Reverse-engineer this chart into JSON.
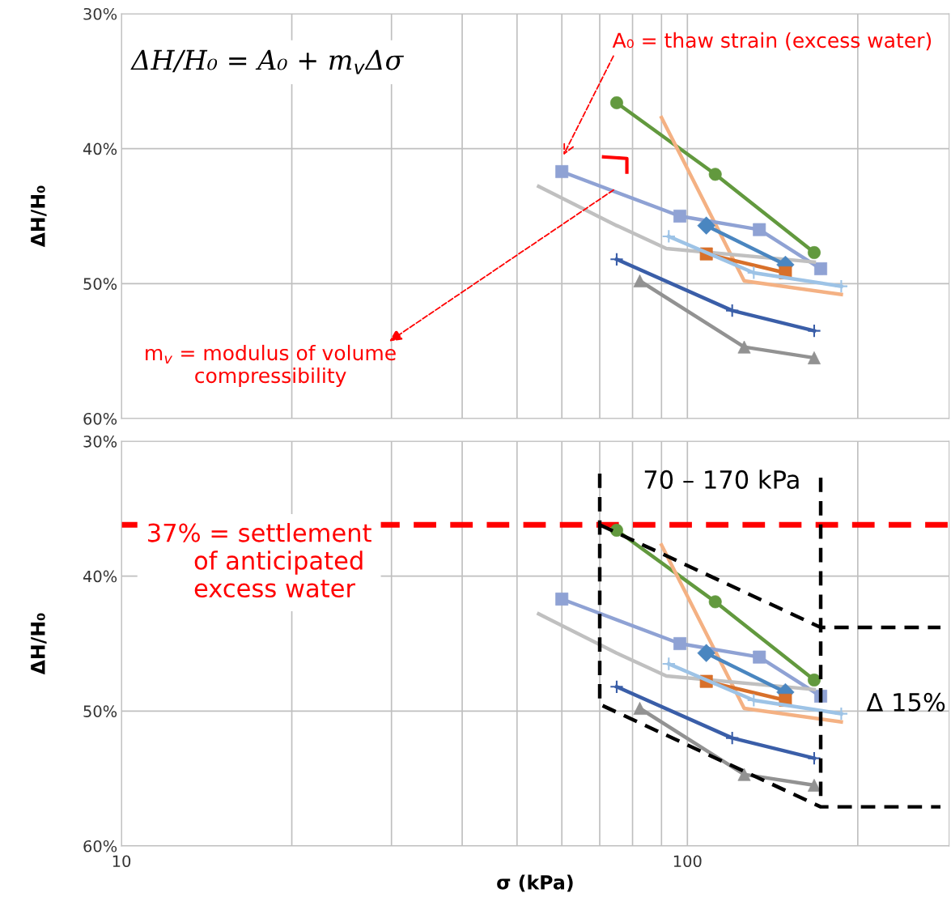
{
  "chart_data": [
    {
      "type": "line",
      "ylabel": "ΔH/H₀",
      "log": "x",
      "grid": true,
      "tick_labels": "y",
      "xlim": [
        10,
        290
      ],
      "xticks": [
        10,
        {
          "value": 20,
          "label": null
        },
        {
          "value": 30,
          "label": null
        },
        {
          "value": 40,
          "label": null
        },
        {
          "value": 50,
          "label": null
        },
        {
          "value": 60,
          "label": null
        },
        {
          "value": 70,
          "label": null
        },
        {
          "value": 80,
          "label": null
        },
        {
          "value": 90,
          "label": null
        },
        100,
        {
          "value": 200,
          "label": null
        }
      ],
      "ylim": [
        60,
        30
      ],
      "yticks": [
        {
          "value": 30,
          "label": "30%"
        },
        {
          "value": 40,
          "label": "40%"
        },
        {
          "value": 50,
          "label": "50%"
        },
        {
          "value": 60,
          "label": "60%"
        }
      ],
      "annotations": [
        "ΔH/H₀ = A₀ + m$_{v}$Δσ",
        "A₀ = thaw strain (excess water)",
        {
          "text": "m$_{v}$ = modulus of volume\ncompressibility",
          "x": 75,
          "y": 42.9
        }
      ],
      "series": [
        {
          "color": "#62993e",
          "marker": "circle",
          "x": [
            75,
            112,
            167.5
          ],
          "values": [
            36.6,
            41.9,
            47.7
          ]
        },
        {
          "color": "#f4b183",
          "marker": "none",
          "x": [
            90,
            126,
            187
          ],
          "values": [
            37.7,
            49.8,
            50.8
          ]
        },
        {
          "color": "#8fa2d4",
          "marker": "square",
          "x": [
            60,
            97,
            134,
            172
          ],
          "values": [
            41.7,
            45.0,
            46.0,
            48.9
          ]
        },
        {
          "color": "#c0c0c0",
          "marker": "none",
          "x": [
            54.6,
            75,
            91.8,
            167.5
          ],
          "values": [
            42.8,
            45.7,
            47.4,
            48.4
          ]
        },
        {
          "color": "#4a86c0",
          "marker": "diamond",
          "x": [
            108,
            149
          ],
          "values": [
            45.7,
            48.6
          ]
        },
        {
          "color": "#d8702a",
          "marker": "square",
          "x": [
            108,
            149
          ],
          "values": [
            47.8,
            49.2
          ]
        },
        {
          "color": "#9dc3e6",
          "marker": "cross",
          "x": [
            92.7,
            131,
            187
          ],
          "values": [
            46.5,
            49.2,
            50.2
          ]
        },
        {
          "color": "#3a5ea8",
          "marker": "cross",
          "x": [
            75,
            120,
            167.5
          ],
          "values": [
            48.2,
            52.0,
            53.5
          ]
        },
        {
          "color": "#929292",
          "marker": "triangle",
          "x": [
            82.4,
            126,
            167.5
          ],
          "values": [
            49.8,
            54.7,
            55.5
          ]
        }
      ]
    },
    {
      "type": "line",
      "ylabel": "ΔH/H₀",
      "xlabel": "σ (kPa)",
      "log": "x",
      "grid": true,
      "xlim": [
        10,
        290
      ],
      "xticks": [
        10,
        {
          "value": 20,
          "label": null
        },
        {
          "value": 30,
          "label": null
        },
        {
          "value": 40,
          "label": null
        },
        {
          "value": 50,
          "label": null
        },
        {
          "value": 60,
          "label": null
        },
        {
          "value": 70,
          "label": null
        },
        {
          "value": 80,
          "label": null
        },
        {
          "value": 90,
          "label": null
        },
        100,
        {
          "value": 200,
          "label": null
        }
      ],
      "ylim": [
        60,
        30
      ],
      "yticks": [
        {
          "value": 30,
          "label": "30%"
        },
        {
          "value": 40,
          "label": "40%"
        },
        {
          "value": 50,
          "label": "50%"
        },
        {
          "value": 60,
          "label": "60%"
        }
      ],
      "ref_lines": [
        {
          "axis": "y",
          "value": 36.2,
          "color": "#ff0000",
          "line_style": "dashed"
        }
      ],
      "annotations": [
        "37% = settlement\n      of anticipated\n      excess water",
        "70 – 170 kPa",
        "Δ 15%"
      ],
      "series": [
        {
          "color": "#62993e",
          "marker": "circle",
          "x": [
            75,
            112,
            167.5
          ],
          "values": [
            36.6,
            41.9,
            47.7
          ]
        },
        {
          "color": "#f4b183",
          "marker": "none",
          "x": [
            90,
            126,
            187
          ],
          "values": [
            37.7,
            49.8,
            50.8
          ]
        },
        {
          "color": "#8fa2d4",
          "marker": "square",
          "x": [
            60,
            97,
            134,
            172
          ],
          "values": [
            41.7,
            45.0,
            46.0,
            48.9
          ]
        },
        {
          "color": "#c0c0c0",
          "marker": "none",
          "x": [
            54.6,
            75,
            91.8,
            167.5
          ],
          "values": [
            42.8,
            45.7,
            47.4,
            48.4
          ]
        },
        {
          "color": "#4a86c0",
          "marker": "diamond",
          "x": [
            108,
            149
          ],
          "values": [
            45.7,
            48.6
          ]
        },
        {
          "color": "#d8702a",
          "marker": "square",
          "x": [
            108,
            149
          ],
          "values": [
            47.8,
            49.2
          ]
        },
        {
          "color": "#9dc3e6",
          "marker": "cross",
          "x": [
            92.7,
            131,
            187
          ],
          "values": [
            46.5,
            49.2,
            50.2
          ]
        },
        {
          "color": "#3a5ea8",
          "marker": "cross",
          "x": [
            75,
            120,
            167.5
          ],
          "values": [
            48.2,
            52.0,
            53.5
          ]
        },
        {
          "color": "#929292",
          "marker": "triangle",
          "x": [
            82.4,
            126,
            167.5
          ],
          "values": [
            49.8,
            54.7,
            55.5
          ]
        },
        {
          "color": "#000000",
          "marker": "none",
          "line_style": "dashed",
          "x": [
            70,
            70,
            172,
            280,
            null,
            70,
            172,
            280,
            null,
            172,
            172
          ],
          "values": [
            32.4,
            49.5,
            57.1,
            57.1,
            null,
            36.2,
            43.8,
            43.8,
            null,
            32.7,
            57.1
          ]
        }
      ]
    }
  ]
}
